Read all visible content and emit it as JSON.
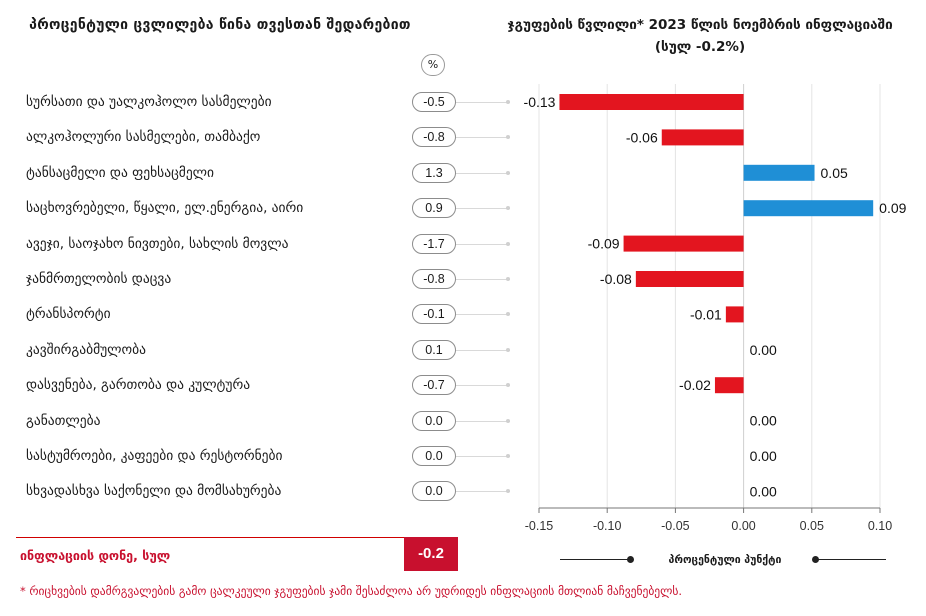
{
  "left_title": "პროცენტული ცვლილება წინა თვესთან შედარებით",
  "right_title": "ჯგუფების წვლილი* 2023 წლის ნოემბრის ინფლაციაში (სულ -0.2%)",
  "pct_badge": "%",
  "rows": [
    {
      "label": "სურსათი და უალკოჰოლო სასმელები",
      "pct": "-0.5"
    },
    {
      "label": "ალკოჰოლური სასმელები, თამბაქო",
      "pct": "-0.8"
    },
    {
      "label": "ტანსაცმელი და ფეხსაცმელი",
      "pct": "1.3"
    },
    {
      "label": "საცხოვრებელი, წყალი, ელ.ენერგია, აირი",
      "pct": "0.9"
    },
    {
      "label": "ავეჯი, საოჯახო ნივთები, სახლის მოვლა",
      "pct": "-1.7"
    },
    {
      "label": "ჯანმრთელობის დაცვა",
      "pct": "-0.8"
    },
    {
      "label": "ტრანსპორტი",
      "pct": "-0.1"
    },
    {
      "label": "კავშირგაბმულობა",
      "pct": "0.1"
    },
    {
      "label": "დასვენება, გართობა და კულტურა",
      "pct": "-0.7"
    },
    {
      "label": "განათლება",
      "pct": "0.0"
    },
    {
      "label": "სასტუმროები, კაფეები და რესტორნები",
      "pct": "0.0"
    },
    {
      "label": "სხვადასხვა საქონელი და მომსახურება",
      "pct": "0.0"
    }
  ],
  "footer": {
    "label": "ინფლაციის დონე, სულ",
    "value": "-0.2"
  },
  "axis_caption": "პროცენტული პუნქტი",
  "footnote": "* რიცხვების დამრგვალების გამო ცალკეული ჯგუფების ჯამი შესაძლოა არ უდრიდეს ინფლაციის მთლიან მაჩვენებელს.",
  "colors": {
    "negative": "#e3151f",
    "positive": "#1f8fd6",
    "accent": "#c8102e"
  },
  "chart_data": {
    "type": "bar",
    "orientation": "horizontal",
    "categories": [
      "სურსათი და უალკოჰოლო სასმელები",
      "ალკოჰოლური სასმელები, თამბაქო",
      "ტანსაცმელი და ფეხსაცმელი",
      "საცხოვრებელი, წყალი, ელ.ენერგია, აირი",
      "ავეჯი, საოჯახო ნივთები, სახლის მოვლა",
      "ჯანმრთელობის დაცვა",
      "ტრანსპორტი",
      "კავშირგაბმულობა",
      "დასვენება, გართობა და კულტურა",
      "განათლება",
      "სასტუმროები, კაფეები და რესტორნები",
      "სხვადასხვა საქონელი და მომსახურება"
    ],
    "values": [
      -0.135,
      -0.06,
      0.052,
      0.095,
      -0.088,
      -0.079,
      -0.013,
      0.0,
      -0.021,
      0.0,
      0.0,
      0.0
    ],
    "value_labels": [
      "-0.13",
      "-0.06",
      "0.05",
      "0.09",
      "-0.09",
      "-0.08",
      "-0.01",
      "0.00",
      "-0.02",
      "0.00",
      "0.00",
      "0.00"
    ],
    "xlim": [
      -0.15,
      0.1
    ],
    "ticks": [
      -0.15,
      -0.1,
      -0.05,
      0.0,
      0.05,
      0.1
    ],
    "tick_labels": [
      "-0.15",
      "-0.10",
      "-0.05",
      "0.00",
      "0.05",
      "0.10"
    ],
    "xlabel": "პროცენტული პუნქტი",
    "grid": true
  }
}
